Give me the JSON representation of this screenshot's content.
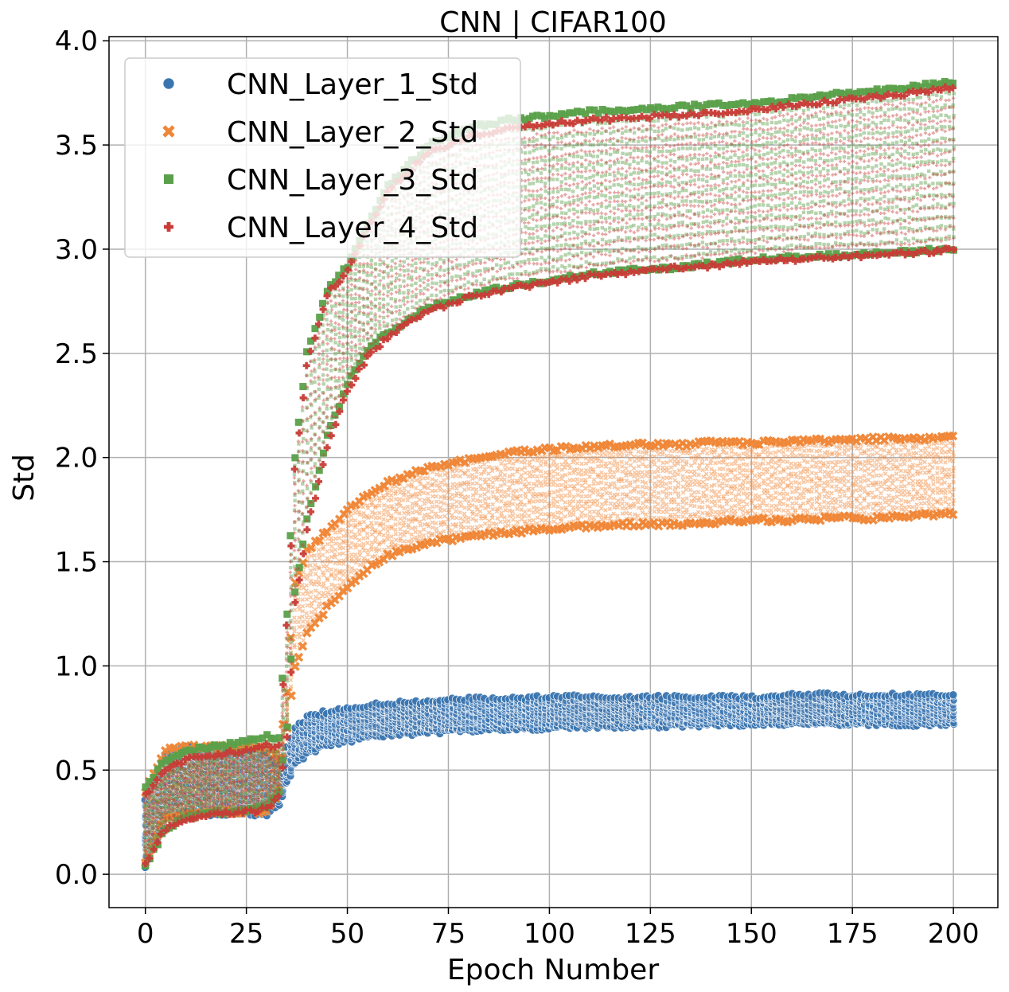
{
  "chart_data": {
    "type": "scatter",
    "title": "CNN | CIFAR100",
    "xlabel": "Epoch Number",
    "ylabel": "Std",
    "xlim": [
      -9,
      211
    ],
    "ylim": [
      -0.16,
      4.02
    ],
    "xticks": [
      0,
      25,
      50,
      75,
      100,
      125,
      150,
      175,
      200
    ],
    "yticks": [
      0.0,
      0.5,
      1.0,
      1.5,
      2.0,
      2.5,
      3.0,
      3.5,
      4.0
    ],
    "xtick_labels": [
      "0",
      "25",
      "50",
      "75",
      "100",
      "125",
      "150",
      "175",
      "200"
    ],
    "ytick_labels": [
      "0.0",
      "0.5",
      "1.0",
      "1.5",
      "2.0",
      "2.5",
      "3.0",
      "3.5",
      "4.0"
    ],
    "grid": true,
    "legend_position": "top-left",
    "series": [
      {
        "name": "CNN_Layer_1_Std",
        "marker": "circle",
        "color": "#3a75b0",
        "epochs": [
          0,
          5,
          10,
          15,
          20,
          25,
          30,
          33,
          35,
          37,
          40,
          45,
          50,
          55,
          60,
          70,
          80,
          90,
          100,
          110,
          120,
          130,
          140,
          150,
          160,
          170,
          180,
          190,
          200
        ],
        "low": [
          0.03,
          0.28,
          0.29,
          0.29,
          0.29,
          0.29,
          0.29,
          0.33,
          0.43,
          0.53,
          0.58,
          0.62,
          0.64,
          0.66,
          0.67,
          0.68,
          0.69,
          0.7,
          0.7,
          0.71,
          0.71,
          0.71,
          0.72,
          0.72,
          0.72,
          0.72,
          0.72,
          0.72,
          0.72
        ],
        "high": [
          0.35,
          0.58,
          0.61,
          0.6,
          0.6,
          0.6,
          0.58,
          0.52,
          0.62,
          0.7,
          0.75,
          0.78,
          0.8,
          0.81,
          0.82,
          0.83,
          0.84,
          0.84,
          0.85,
          0.85,
          0.85,
          0.85,
          0.85,
          0.85,
          0.86,
          0.86,
          0.86,
          0.86,
          0.86
        ]
      },
      {
        "name": "CNN_Layer_2_Std",
        "marker": "x",
        "color": "#ef8636",
        "epochs": [
          0,
          5,
          10,
          15,
          20,
          25,
          30,
          33,
          35,
          37,
          40,
          45,
          50,
          55,
          60,
          70,
          80,
          90,
          100,
          110,
          120,
          130,
          140,
          150,
          160,
          170,
          180,
          190,
          200
        ],
        "low": [
          0.05,
          0.28,
          0.29,
          0.29,
          0.3,
          0.3,
          0.3,
          0.4,
          0.7,
          1.0,
          1.15,
          1.28,
          1.38,
          1.47,
          1.53,
          1.59,
          1.62,
          1.64,
          1.66,
          1.67,
          1.68,
          1.68,
          1.69,
          1.7,
          1.7,
          1.71,
          1.71,
          1.72,
          1.73
        ],
        "high": [
          0.4,
          0.6,
          0.61,
          0.61,
          0.61,
          0.62,
          0.61,
          0.55,
          0.88,
          1.4,
          1.55,
          1.65,
          1.75,
          1.82,
          1.88,
          1.95,
          1.99,
          2.02,
          2.04,
          2.05,
          2.06,
          2.06,
          2.07,
          2.07,
          2.08,
          2.08,
          2.09,
          2.09,
          2.1
        ]
      },
      {
        "name": "CNN_Layer_3_Std",
        "marker": "square",
        "color": "#5aa04a",
        "epochs": [
          0,
          5,
          10,
          15,
          20,
          25,
          30,
          33,
          35,
          37,
          40,
          45,
          50,
          55,
          60,
          70,
          80,
          90,
          100,
          110,
          120,
          130,
          140,
          150,
          160,
          170,
          180,
          190,
          200
        ],
        "low": [
          0.05,
          0.22,
          0.27,
          0.29,
          0.3,
          0.31,
          0.32,
          0.4,
          0.7,
          1.35,
          1.7,
          2.1,
          2.35,
          2.52,
          2.6,
          2.72,
          2.78,
          2.82,
          2.85,
          2.88,
          2.9,
          2.91,
          2.93,
          2.95,
          2.96,
          2.97,
          2.98,
          2.99,
          3.0
        ],
        "high": [
          0.42,
          0.55,
          0.59,
          0.61,
          0.62,
          0.64,
          0.66,
          0.65,
          1.25,
          2.0,
          2.5,
          2.8,
          2.92,
          3.12,
          3.3,
          3.5,
          3.58,
          3.62,
          3.64,
          3.66,
          3.67,
          3.68,
          3.69,
          3.7,
          3.72,
          3.74,
          3.76,
          3.78,
          3.8
        ]
      },
      {
        "name": "CNN_Layer_4_Std",
        "marker": "plus",
        "color": "#c83c37",
        "epochs": [
          0,
          5,
          10,
          15,
          20,
          25,
          30,
          33,
          35,
          37,
          40,
          45,
          50,
          55,
          60,
          70,
          80,
          90,
          100,
          110,
          120,
          130,
          140,
          150,
          160,
          170,
          180,
          190,
          200
        ],
        "low": [
          0.05,
          0.22,
          0.26,
          0.28,
          0.29,
          0.3,
          0.31,
          0.38,
          0.65,
          1.3,
          1.65,
          2.05,
          2.32,
          2.48,
          2.58,
          2.7,
          2.77,
          2.81,
          2.84,
          2.87,
          2.89,
          2.91,
          2.92,
          2.94,
          2.95,
          2.96,
          2.97,
          2.98,
          3.0
        ],
        "high": [
          0.38,
          0.5,
          0.55,
          0.57,
          0.58,
          0.6,
          0.62,
          0.62,
          1.2,
          1.95,
          2.45,
          2.78,
          2.9,
          3.1,
          3.28,
          3.46,
          3.54,
          3.58,
          3.6,
          3.62,
          3.63,
          3.64,
          3.65,
          3.67,
          3.69,
          3.71,
          3.73,
          3.75,
          3.78
        ]
      }
    ]
  }
}
